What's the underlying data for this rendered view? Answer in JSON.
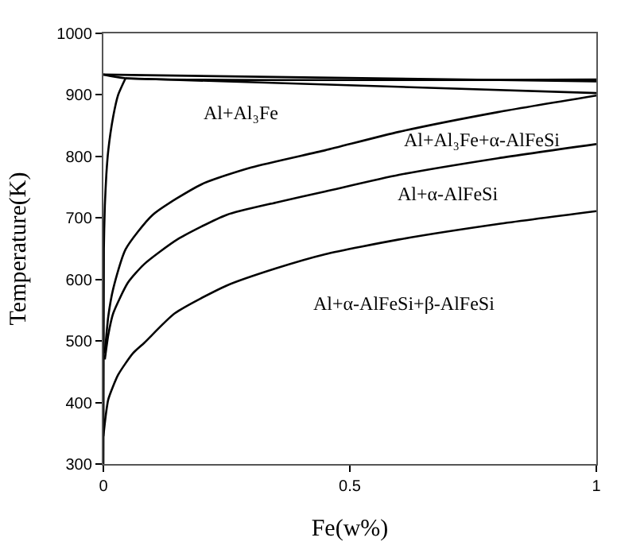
{
  "chart_data": {
    "type": "line",
    "xlabel": "Fe(w%)",
    "ylabel": "Temperature(K)",
    "xlim": [
      0,
      1
    ],
    "xticks": [
      0,
      0.5,
      1
    ],
    "ylim": [
      300,
      1000
    ],
    "yticks": [
      300,
      400,
      500,
      600,
      700,
      800,
      900,
      1000
    ],
    "marker": "none",
    "line_style": "solid",
    "series": [
      {
        "color": "#000000",
        "x": [
          0,
          0.045,
          1
        ],
        "values": [
          933,
          927,
          925
        ]
      },
      {
        "color": "#000000",
        "x": [
          0,
          1
        ],
        "values": [
          933,
          922
        ]
      },
      {
        "color": "#000000",
        "x": [
          0.045,
          1
        ],
        "values": [
          927,
          903
        ]
      },
      {
        "color": "#000000",
        "x": [
          0,
          0.001,
          0.003,
          0.006,
          0.01,
          0.02,
          0.03,
          0.045
        ],
        "values": [
          300,
          650,
          720,
          770,
          810,
          865,
          900,
          927
        ]
      },
      {
        "color": "#000000",
        "x": [
          0.003,
          0.01,
          0.02,
          0.045,
          0.1,
          0.2,
          0.3,
          0.45,
          0.6,
          0.8,
          1
        ],
        "values": [
          480,
          540,
          585,
          649,
          705,
          755,
          782,
          810,
          840,
          872,
          899
        ]
      },
      {
        "color": "#000000",
        "x": [
          0.003,
          0.01,
          0.02,
          0.05,
          0.083,
          0.15,
          0.25,
          0.35,
          0.45,
          0.6,
          0.8,
          1
        ],
        "values": [
          470,
          510,
          545,
          595,
          625,
          665,
          705,
          725,
          743,
          770,
          797,
          820
        ]
      },
      {
        "color": "#000000",
        "x": [
          0,
          0.005,
          0.01,
          0.03,
          0.06,
          0.083,
          0.145,
          0.25,
          0.35,
          0.45,
          0.6,
          0.8,
          1
        ],
        "values": [
          345,
          380,
          405,
          445,
          480,
          497,
          545,
          590,
          618,
          641,
          665,
          690,
          711
        ]
      }
    ],
    "annotations": [
      "Al+Al₃Fe",
      "Al+Al₃Fe+α-AlFeSi",
      "Al+α-AlFeSi",
      "Al+α-AlFeSi+β-AlFeSi"
    ]
  }
}
